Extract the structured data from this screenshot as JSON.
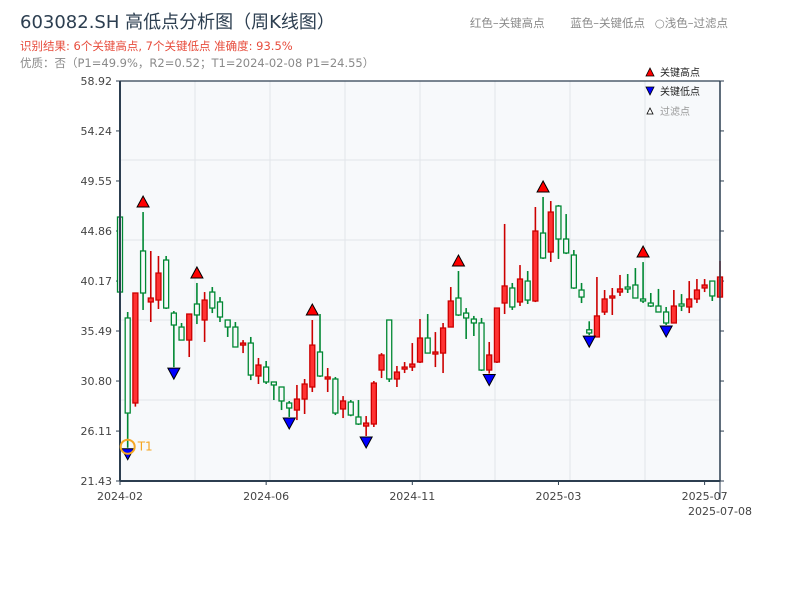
{
  "header": {
    "title": "603082.SH 高低点分析图（周K线图）",
    "result": "识别结果: 6个关键高点, 7个关键低点   准确度: 93.5%",
    "quality": "优质：否（P1=49.9%，R2=0.52；T1=2024-02-08 P1=24.55）",
    "legend_text": [
      "红色–关键高点",
      "蓝色–关键低点",
      "○浅色–过滤点"
    ]
  },
  "colors": {
    "up": "#ff3333",
    "up_edge": "#cc0000",
    "down": "#008833",
    "high_marker": "#ff0000",
    "low_marker": "#0000ff",
    "t1": "#f5a623",
    "plot_bg": "#f7f9fb",
    "axis": "#2c3e50"
  },
  "chart_data": {
    "type": "candlestick",
    "title": "603082.SH 高低点分析图（周K线图）",
    "ylim": [
      21.43,
      58.92
    ],
    "y_ticks": [
      "58.92",
      "54.24",
      "49.55",
      "44.86",
      "40.17",
      "35.49",
      "30.80",
      "26.11",
      "21.43"
    ],
    "x_ticks": [
      {
        "label": "2024-02",
        "index": 0
      },
      {
        "label": "2024-06",
        "index": 19
      },
      {
        "label": "2024-11",
        "index": 38
      },
      {
        "label": "2025-03",
        "index": 57
      },
      {
        "label": "2025-07",
        "index": 76
      },
      {
        "label": "2025-07-08",
        "index": 78
      }
    ],
    "grid": true,
    "legend": {
      "placement": "top-right",
      "items": [
        "关键高点",
        "关键低点",
        "过滤点"
      ]
    },
    "candles_ohlc": [
      [
        46.17,
        46.2,
        39.1,
        39.14
      ],
      [
        36.71,
        37.27,
        24.55,
        27.8
      ],
      [
        28.74,
        39.05,
        28.4,
        39.05
      ],
      [
        42.99,
        46.64,
        37.46,
        39.05
      ],
      [
        38.21,
        42.99,
        36.33,
        38.58
      ],
      [
        38.39,
        42.52,
        37.55,
        40.92
      ],
      [
        42.14,
        42.52,
        37.55,
        37.64
      ],
      [
        37.17,
        37.36,
        32.1,
        36.05
      ],
      [
        35.86,
        36.24,
        34.64,
        34.64
      ],
      [
        34.64,
        37.08,
        33.05,
        37.08
      ],
      [
        38.02,
        39.99,
        36.14,
        36.99
      ],
      [
        36.52,
        39.14,
        34.46,
        38.39
      ],
      [
        39.14,
        39.61,
        37.17,
        37.64
      ],
      [
        38.21,
        38.67,
        36.33,
        36.8
      ],
      [
        36.52,
        36.52,
        34.93,
        35.86
      ],
      [
        35.86,
        36.33,
        33.99,
        33.99
      ],
      [
        34.17,
        34.64,
        33.42,
        34.36
      ],
      [
        34.36,
        34.93,
        30.89,
        31.36
      ],
      [
        31.27,
        32.96,
        30.52,
        32.3
      ],
      [
        32.11,
        32.68,
        30.52,
        30.71
      ],
      [
        30.71,
        30.71,
        29.02,
        30.43
      ],
      [
        30.24,
        30.24,
        28.08,
        28.93
      ],
      [
        28.74,
        28.93,
        27.43,
        28.27
      ],
      [
        28.08,
        30.43,
        27.14,
        29.11
      ],
      [
        29.11,
        30.99,
        27.71,
        30.52
      ],
      [
        30.24,
        36.52,
        29.77,
        34.17
      ],
      [
        33.52,
        37.08,
        31.18,
        31.27
      ],
      [
        30.99,
        32.02,
        29.77,
        31.18
      ],
      [
        30.99,
        31.18,
        27.61,
        27.8
      ],
      [
        28.18,
        29.39,
        27.33,
        28.93
      ],
      [
        28.83,
        29.02,
        27.5,
        27.61
      ],
      [
        27.43,
        29.02,
        26.68,
        26.77
      ],
      [
        26.58,
        27.52,
        25.65,
        26.86
      ],
      [
        26.77,
        30.8,
        26.49,
        30.61
      ],
      [
        31.83,
        33.42,
        31.08,
        33.24
      ],
      [
        36.52,
        36.52,
        30.71,
        30.99
      ],
      [
        30.99,
        32.21,
        30.24,
        31.64
      ],
      [
        31.92,
        32.58,
        31.55,
        32.11
      ],
      [
        32.11,
        34.36,
        31.74,
        32.39
      ],
      [
        32.58,
        36.61,
        32.49,
        34.83
      ],
      [
        34.83,
        37.08,
        33.42,
        33.42
      ],
      [
        33.33,
        35.39,
        32.11,
        33.52
      ],
      [
        33.42,
        36.24,
        31.55,
        35.77
      ],
      [
        35.86,
        39.61,
        35.86,
        38.3
      ],
      [
        38.58,
        41.11,
        36.9,
        36.99
      ],
      [
        37.17,
        37.64,
        34.74,
        36.71
      ],
      [
        36.61,
        36.9,
        35.02,
        36.24
      ],
      [
        36.24,
        36.71,
        31.74,
        31.83
      ],
      [
        31.83,
        34.46,
        31.5,
        33.24
      ],
      [
        32.58,
        37.64,
        32.49,
        37.64
      ],
      [
        38.11,
        45.52,
        37.08,
        39.71
      ],
      [
        39.52,
        39.99,
        37.46,
        37.74
      ],
      [
        38.21,
        41.67,
        37.83,
        40.36
      ],
      [
        40.17,
        41.11,
        38.02,
        38.39
      ],
      [
        38.3,
        47.11,
        38.2,
        44.86
      ],
      [
        44.67,
        48.05,
        42.24,
        42.33
      ],
      [
        42.89,
        47.67,
        41.96,
        46.64
      ],
      [
        47.2,
        47.3,
        42.24,
        44.11
      ],
      [
        44.11,
        46.45,
        42.7,
        42.8
      ],
      [
        42.61,
        43.08,
        39.43,
        39.52
      ],
      [
        39.33,
        39.99,
        38.11,
        38.67
      ],
      [
        35.6,
        36.4,
        35.1,
        35.3
      ],
      [
        34.93,
        40.55,
        34.93,
        36.9
      ],
      [
        37.27,
        39.33,
        36.99,
        38.49
      ],
      [
        38.58,
        39.52,
        36.99,
        38.77
      ],
      [
        39.14,
        40.74,
        38.77,
        39.43
      ],
      [
        39.61,
        40.83,
        39.05,
        39.43
      ],
      [
        39.8,
        41.39,
        38.58,
        38.58
      ],
      [
        38.49,
        41.95,
        38.11,
        38.3
      ],
      [
        38.11,
        39.05,
        37.74,
        37.83
      ],
      [
        37.83,
        39.43,
        37.27,
        37.27
      ],
      [
        37.27,
        37.74,
        36.05,
        36.24
      ],
      [
        36.24,
        39.33,
        36.24,
        37.83
      ],
      [
        38.02,
        38.95,
        37.36,
        37.83
      ],
      [
        37.74,
        40.17,
        37.17,
        38.49
      ],
      [
        38.49,
        40.36,
        38.11,
        39.33
      ],
      [
        39.52,
        40.36,
        39.14,
        39.8
      ],
      [
        40.17,
        40.17,
        38.3,
        38.77
      ],
      [
        38.67,
        42.05,
        38.58,
        40.55
      ]
    ],
    "key_highs": [
      3,
      10,
      25,
      44,
      55,
      68
    ],
    "key_lows": [
      1,
      7,
      22,
      32,
      48,
      61,
      71
    ],
    "t1": {
      "index": 1,
      "label": "T1",
      "date": "2024-02-08",
      "price": 24.55
    }
  }
}
